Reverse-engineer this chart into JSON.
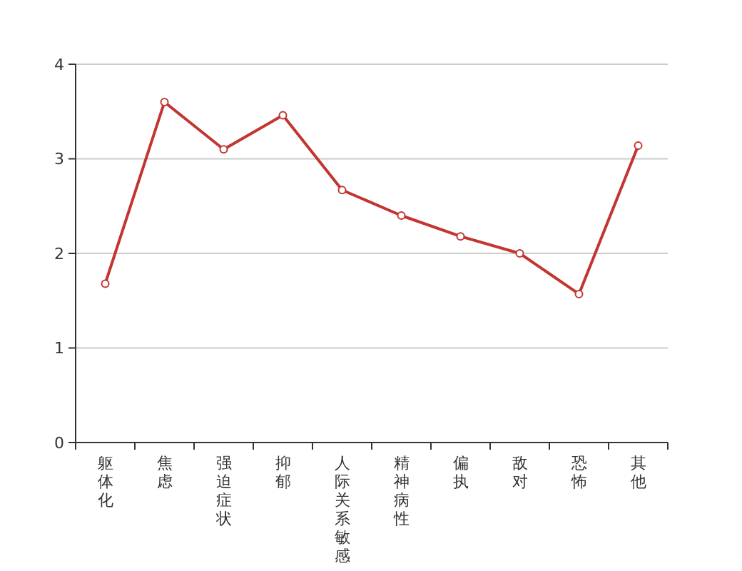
{
  "chart_data": {
    "type": "line",
    "categories": [
      "躯体化",
      "焦虑",
      "强迫症状",
      "抑郁",
      "人际关系敏感",
      "精神病性",
      "偏执",
      "敌对",
      "恐怖",
      "其他"
    ],
    "series": [
      {
        "color": "#c23531",
        "values": [
          1.68,
          3.6,
          3.1,
          3.46,
          2.67,
          2.4,
          2.18,
          2.0,
          1.57,
          3.14
        ]
      }
    ],
    "ylim": [
      0,
      4
    ],
    "yticks": [
      0,
      1,
      2,
      3,
      4
    ],
    "grid": "y",
    "marker": "circle",
    "line_style": "solid"
  }
}
